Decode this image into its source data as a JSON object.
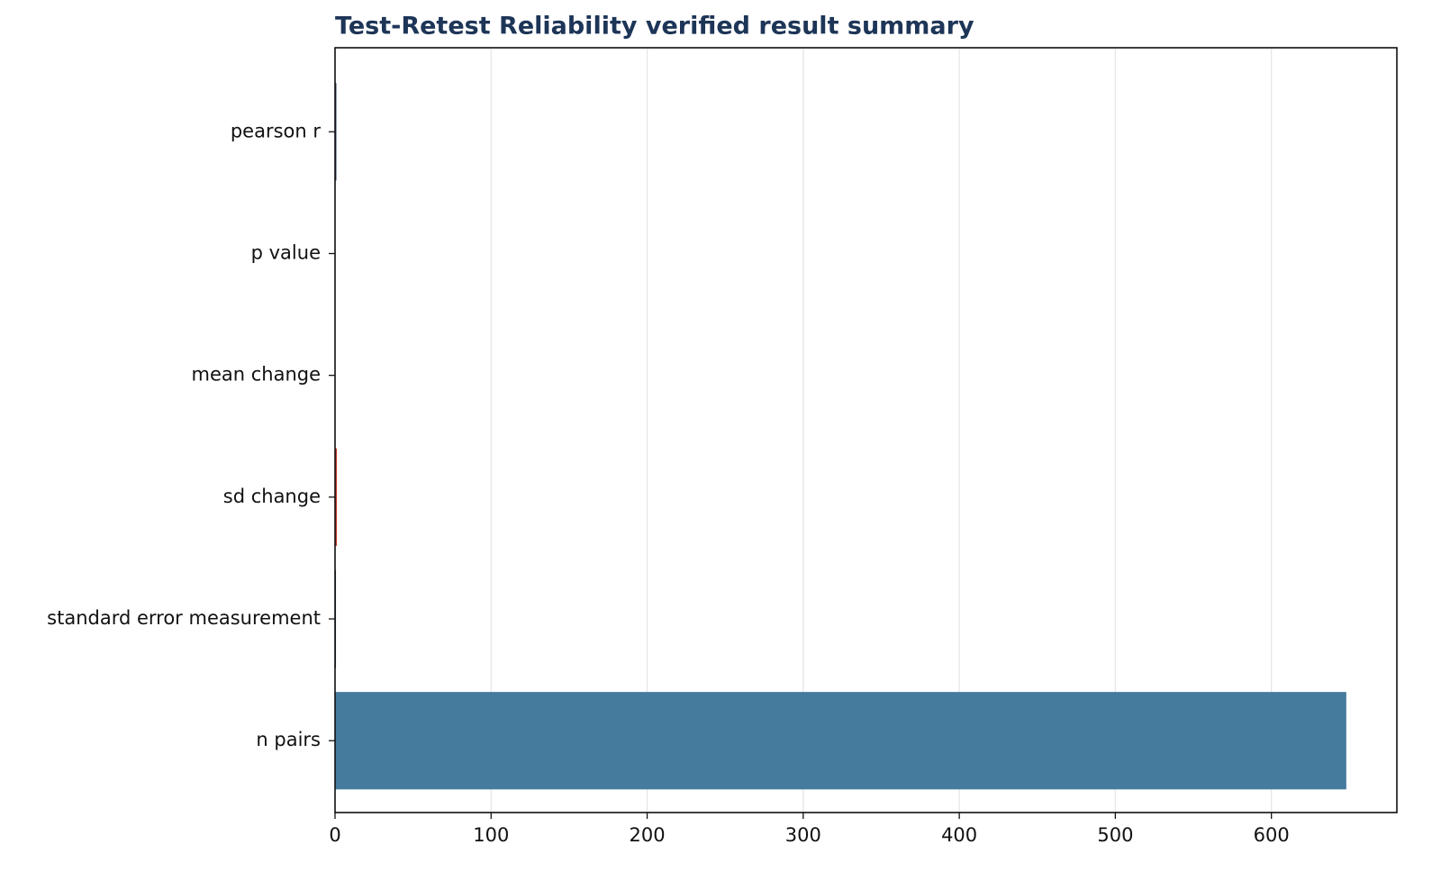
{
  "chart_data": {
    "type": "barh",
    "title": "Test-Retest Reliability verified result summary",
    "categories": [
      "pearson r",
      "p value",
      "mean change",
      "sd change",
      "standard error measurement",
      "n pairs"
    ],
    "values": [
      0.85,
      0.0001,
      0.1,
      1.2,
      0.6,
      648
    ],
    "colors": [
      "#1d3557",
      "#1d3557",
      "#1d3557",
      "#c0392b",
      "#1d3557",
      "#457b9d"
    ],
    "xlim": [
      0,
      680.4
    ],
    "xticks": [
      0,
      100,
      200,
      300,
      400,
      500,
      600
    ],
    "grid": true
  }
}
